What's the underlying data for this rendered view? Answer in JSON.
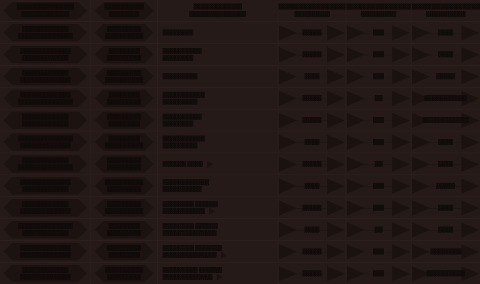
{
  "theme": {
    "background_color": "#251a17",
    "gridline_color": "#2a1f1c",
    "ribbon_color": "#1c120f",
    "shape_color": "#1b110e",
    "text_color": "#0f0a08"
  },
  "table": {
    "rows": [
      {
        "header": true,
        "c1": {
          "line1": "▓▓▓▓▓▓▓▓▓▓▓▓▓",
          "line2": "▓▓▓▓▓▓▓▓▓▓▓"
        },
        "c2": {
          "line1": "▓▓▓▓▓▓▓▓▓",
          "line2": "▓▓▓▓▓▓▓"
        },
        "c3": {
          "line1": "▓▓▓▓▓▓▓▓▓▓▓",
          "line2": "▓▓▓▓▓▓▓▓▓▓▓▓▓"
        },
        "c4": {
          "line1": "▓▓▓▓▓▓▓▓▓▓▓▓▓▓▓▓▓▓▓",
          "line2": "▓▓▓▓▓▓▓▓"
        },
        "c5": {
          "line1": "▓▓▓▓▓▓▓▓▓▓▓▓▓▓▓▓▓▓",
          "line2": "▓▓▓▓▓▓▓▓"
        },
        "c6": {
          "line1": "▓▓▓▓▓▓▓▓▓▓▓▓▓▓▓▓▓▓",
          "line2": "▓▓▓▓▓▓▓▓▓"
        }
      },
      {
        "c1": {
          "line1": "▓▓▓▓▓▓▓▓▓▓▓▓",
          "line2": "▓▓▓▓▓▓▓▓▓▓▓▓▓▓"
        },
        "c2": {
          "line1": "▓▓▓▓▓▓▓▓▓",
          "line2": "▓▓▓▓▓▓▓▓▓▓"
        },
        "c3": {
          "line1": "▓▓▓▓▓▓▓▓"
        },
        "c4": {
          "value": "▓▓▓▓▓"
        },
        "c5": {
          "value": "▓▓▓"
        },
        "c6": {
          "value": "▓▓▓▓"
        }
      },
      {
        "c1": {
          "line1": "▓▓▓▓▓▓▓▓▓▓▓▓▓",
          "line2": "▓▓▓▓▓▓▓▓▓▓▓▓"
        },
        "c2": {
          "line1": "▓▓▓▓▓▓▓▓",
          "line2": "▓▓▓▓▓▓▓▓▓"
        },
        "c3": {
          "line1": "▓▓▓▓▓▓▓▓▓▓",
          "line2": "▓▓▓▓▓▓▓▓"
        },
        "c4": {
          "value": "▓▓▓▓▓"
        },
        "c5": {
          "value": "▓▓▓"
        },
        "c6": {
          "value": "▓▓▓▓"
        }
      },
      {
        "c1": {
          "line1": "▓▓▓▓▓▓▓▓▓▓▓▓",
          "line2": "▓▓▓▓▓▓▓▓▓▓▓▓▓"
        },
        "c2": {
          "line1": "▓▓▓▓▓▓▓▓▓",
          "line2": "▓▓▓▓▓▓▓▓▓▓"
        },
        "c3": {
          "line1": "▓▓▓▓▓▓▓▓▓"
        },
        "c4": {
          "value": "▓▓▓▓"
        },
        "c5": {
          "value": "▓▓▓"
        },
        "c6": {
          "value": "▓▓▓▓▓"
        }
      },
      {
        "c1": {
          "line1": "▓▓▓▓▓▓▓▓▓▓▓▓▓",
          "line2": "▓▓▓▓▓▓▓▓▓▓▓▓▓▓"
        },
        "c2": {
          "line1": "▓▓▓▓▓▓▓▓",
          "line2": "▓▓▓▓▓▓▓▓▓"
        },
        "c3": {
          "line1": "▓▓▓▓▓▓▓▓▓▓▓",
          "line2": "▓▓▓▓▓▓▓▓▓"
        },
        "c4": {
          "value": "▓▓▓▓▓"
        },
        "c5": {
          "value": "▓▓"
        },
        "c6": {
          "value": "▓▓▓▓▓▓▓▓▓▓▓"
        }
      },
      {
        "c1": {
          "line1": "▓▓▓▓▓▓▓▓▓▓▓▓",
          "line2": "▓▓▓▓▓▓▓▓▓▓▓▓"
        },
        "c2": {
          "line1": "▓▓▓▓▓▓▓▓▓",
          "line2": "▓▓▓▓▓▓▓▓"
        },
        "c3": {
          "line1": "▓▓▓▓▓▓▓▓▓▓",
          "line2": "▓▓▓▓▓▓▓▓"
        },
        "c4": {
          "value": "▓▓▓▓▓"
        },
        "c5": {
          "value": "▓▓▓"
        },
        "c6": {
          "value": "▓▓▓▓▓▓▓▓▓▓▓▓"
        }
      },
      {
        "c1": {
          "line1": "▓▓▓▓▓▓▓▓▓▓▓▓▓▓",
          "line2": "▓▓▓▓▓▓▓▓▓▓▓▓▓"
        },
        "c2": {
          "line1": "▓▓▓▓▓▓▓▓",
          "line2": "▓▓▓▓▓▓▓▓▓▓"
        },
        "c3": {
          "line1": "▓▓▓▓▓▓▓▓▓▓▓",
          "line2": "▓▓▓▓▓▓▓▓▓"
        },
        "c4": {
          "value": "▓▓▓▓"
        },
        "c5": {
          "value": "▓▓▓"
        },
        "c6": {
          "value": "▓▓▓▓"
        }
      },
      {
        "c1": {
          "line1": "▓▓▓▓▓▓▓▓▓▓▓▓",
          "line2": "▓▓▓▓▓▓▓▓▓▓▓▓▓▓"
        },
        "c2": {
          "line1": "▓▓▓▓▓▓▓▓▓",
          "line2": "▓▓▓▓▓▓▓▓▓"
        },
        "c3": {
          "line1": "▓▓▓▓▓▓ ▓▓▓▓",
          "arrow": true
        },
        "c4": {
          "value": "▓▓▓▓▓"
        },
        "c5": {
          "value": "▓▓"
        },
        "c6": {
          "value": "▓▓▓▓"
        }
      },
      {
        "c1": {
          "line1": "▓▓▓▓▓▓▓▓▓▓▓▓▓",
          "line2": "▓▓▓▓▓▓▓▓▓▓▓▓"
        },
        "c2": {
          "line1": "▓▓▓▓▓▓▓▓▓▓",
          "line2": "▓▓▓▓▓▓▓▓▓"
        },
        "c3": {
          "line1": "▓▓▓▓▓▓▓▓▓▓▓▓",
          "line2": "▓▓▓▓▓▓▓▓▓▓"
        },
        "c4": {
          "value": "▓▓▓▓"
        },
        "c5": {
          "value": "▓▓▓"
        },
        "c6": {
          "value": "▓▓▓▓▓"
        }
      },
      {
        "c1": {
          "line1": "▓▓▓▓▓▓▓▓▓▓▓▓",
          "line2": "▓▓▓▓▓▓▓▓▓▓▓▓▓"
        },
        "c2": {
          "line1": "▓▓▓▓▓▓▓▓▓",
          "line2": "▓▓▓▓▓▓▓▓▓▓"
        },
        "c3": {
          "line1": "▓▓▓▓▓▓▓▓ ▓▓▓▓▓▓",
          "line2": "▓▓▓▓▓▓▓▓▓▓▓",
          "arrow": true
        },
        "c4": {
          "value": "▓▓▓▓▓"
        },
        "c5": {
          "value": "▓▓▓"
        },
        "c6": {
          "value": "▓▓▓▓"
        }
      },
      {
        "c1": {
          "line1": "▓▓▓▓▓▓▓▓▓▓▓▓▓▓",
          "line2": "▓▓▓▓▓▓▓▓▓▓▓▓"
        },
        "c2": {
          "line1": "▓▓▓▓▓▓▓▓",
          "line2": "▓▓▓▓▓▓▓▓▓"
        },
        "c3": {
          "line1": "▓▓▓▓▓▓▓▓ ▓▓▓▓▓▓",
          "line2": "▓▓▓▓▓▓▓▓▓▓▓▓▓▓"
        },
        "c4": {
          "value": "▓▓▓▓"
        },
        "c5": {
          "value": "▓▓"
        },
        "c6": {
          "value": "▓▓▓▓"
        }
      },
      {
        "c1": {
          "line1": "▓▓▓▓▓▓▓▓▓▓▓▓▓",
          "line2": "▓▓▓▓▓▓▓▓▓▓▓▓▓"
        },
        "c2": {
          "line1": "▓▓▓▓▓▓▓▓▓",
          "line2": "▓▓▓▓▓▓▓▓"
        },
        "c3": {
          "line1": "▓▓▓▓▓▓▓▓ ▓▓▓▓▓▓▓",
          "line2": "▓▓▓▓▓▓▓▓▓▓▓▓▓▓",
          "arrow": true
        },
        "c4": {
          "value": "▓▓▓▓▓"
        },
        "c5": {
          "value": "▓▓▓"
        },
        "c6": {
          "value": "▓▓▓▓▓▓▓▓"
        }
      },
      {
        "c1": {
          "line1": "▓▓▓▓▓▓▓▓▓▓▓▓",
          "line2": "▓▓▓▓▓▓▓▓▓▓▓▓▓"
        },
        "c2": {
          "line1": "▓▓▓▓▓▓▓▓▓▓",
          "line2": "▓▓▓▓▓▓▓▓▓"
        },
        "c3": {
          "line1": "▓▓▓▓▓▓▓▓▓ ▓▓▓▓▓▓",
          "line2": "▓▓▓▓▓▓▓▓▓▓▓▓▓",
          "arrow": true
        },
        "c4": {
          "value": "▓▓▓▓▓"
        },
        "c5": {
          "value": "▓▓▓"
        },
        "c6": {
          "value": "▓▓▓▓▓▓▓▓▓▓"
        }
      }
    ]
  }
}
